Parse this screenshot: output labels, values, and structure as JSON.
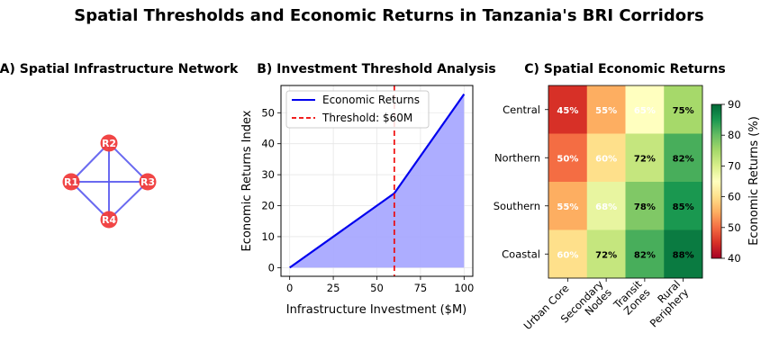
{
  "figure": {
    "suptitle": "Spatial Thresholds and Economic Returns in Tanzania's BRI Corridors"
  },
  "colors": {
    "node_fill": "#f03c3c",
    "edge": "#5a5aee",
    "line": "#0000ee",
    "area": "#a9a9ff",
    "threshold": "#ee0000"
  },
  "chart_data": [
    {
      "type": "network",
      "title": "A) Spatial Infrastructure Network",
      "nodes": [
        "R1",
        "R2",
        "R3",
        "R4"
      ],
      "edges": [
        [
          "R1",
          "R2"
        ],
        [
          "R2",
          "R3"
        ],
        [
          "R3",
          "R4"
        ],
        [
          "R4",
          "R1"
        ],
        [
          "R1",
          "R3"
        ],
        [
          "R2",
          "R4"
        ]
      ]
    },
    {
      "type": "area",
      "title": "B) Investment Threshold Analysis",
      "xlabel": "Infrastructure Investment ($M)",
      "ylabel": "Economic Returns Index",
      "x": [
        0,
        60,
        100
      ],
      "y": [
        0,
        24,
        56
      ],
      "xlim": [
        -5,
        105
      ],
      "ylim": [
        -2.8,
        58.8
      ],
      "xticks": [
        0,
        25,
        50,
        75,
        100
      ],
      "yticks": [
        0,
        10,
        20,
        30,
        40,
        50
      ],
      "threshold": 60,
      "grid": true,
      "legend_position": "top-left",
      "legend": [
        "Economic Returns",
        "Threshold: $60M"
      ]
    },
    {
      "type": "heatmap",
      "title": "C) Spatial Economic Returns",
      "rows": [
        "Central",
        "Northern",
        "Southern",
        "Coastal"
      ],
      "cols": [
        "Urban Core",
        "Secondary Nodes",
        "Transit Zones",
        "Rural Periphery"
      ],
      "col_labels_wrapped": [
        [
          "Urban Core"
        ],
        [
          "Secondary",
          "Nodes"
        ],
        [
          "Transit",
          "Zones"
        ],
        [
          "Rural",
          "Periphery"
        ]
      ],
      "values": [
        [
          45,
          55,
          65,
          75
        ],
        [
          50,
          60,
          72,
          82
        ],
        [
          55,
          68,
          78,
          85
        ],
        [
          60,
          72,
          82,
          88
        ]
      ],
      "value_labels": [
        [
          "45%",
          "55%",
          "65%",
          "75%"
        ],
        [
          "50%",
          "60%",
          "72%",
          "82%"
        ],
        [
          "55%",
          "68%",
          "78%",
          "85%"
        ],
        [
          "60%",
          "72%",
          "82%",
          "88%"
        ]
      ],
      "vmin": 40,
      "vmax": 90,
      "colormap": "RdYlGn",
      "colorbar_label": "Economic Returns (%)",
      "colorbar_ticks": [
        40,
        50,
        60,
        70,
        80,
        90
      ]
    }
  ]
}
